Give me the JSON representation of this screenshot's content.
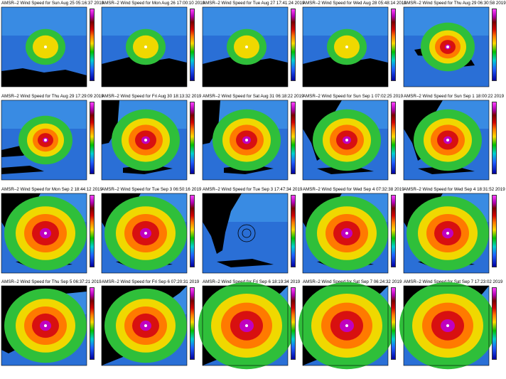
{
  "panels": [
    {
      "title": "AMSR–2 Wind Speed for Sun Aug 25 05:16:37 2019",
      "stage": 1,
      "land": "keys"
    },
    {
      "title": "AMSR–2 Wind Speed for Mon Aug 26 17:00:10 2019",
      "stage": 1,
      "land": "antilles"
    },
    {
      "title": "AMSR–2 Wind Speed for Tue Aug 27 17:41:24 2019",
      "stage": 1,
      "land": "antilles"
    },
    {
      "title": "AMSR–2 Wind Speed for Wed Aug 28 05:48:14 2019",
      "stage": 1,
      "land": "antilles"
    },
    {
      "title": "AMSR–2 Wind Speed for Thu Aug 29 06:30:58 2019",
      "stage": 2,
      "land": "hispaniola"
    },
    {
      "title": "AMSR–2 Wind Speed for Thu Aug 29 17:29:09 2019",
      "stage": 2,
      "land": "cuba"
    },
    {
      "title": "AMSR–2 Wind Speed for Fri Aug 30 18:13:32 2019",
      "stage": 3,
      "land": "bahamas"
    },
    {
      "title": "AMSR–2 Wind Speed for Sat Aug 31 06:18:22 2019",
      "stage": 3,
      "land": "bahamas"
    },
    {
      "title": "AMSR–2 Wind Speed for Sun Sep  1 07:02:25 2019",
      "stage": 3,
      "land": "florida"
    },
    {
      "title": "AMSR–2 Wind Speed for Sun Sep  1 18:00:22 2019",
      "stage": 3,
      "land": "florida"
    },
    {
      "title": "AMSR–2 Wind Speed for Mon Sep  2 18:44:12 2019",
      "stage": 4,
      "land": "florida"
    },
    {
      "title": "AMSR–2 Wind Speed for Tue Sep  3 06:50:16 2019",
      "stage": 4,
      "land": "florida"
    },
    {
      "title": "AMSR–2 Wind Speed for Tue Sep  3 17:47:34 2019",
      "stage": 0,
      "land": "florida"
    },
    {
      "title": "AMSR–2 Wind Speed for Wed Sep  4 07:32:38 2019",
      "stage": 4,
      "land": "florida"
    },
    {
      "title": "AMSR–2 Wind Speed for Wed Sep  4 18:31:52 2019",
      "stage": 4,
      "land": "florida"
    },
    {
      "title": "AMSR–2 Wind Speed for Thu Sep  5 06:37:21 2019",
      "stage": 4,
      "land": "gulf"
    },
    {
      "title": "AMSR–2 Wind Speed for Fri Sep  6 07:20:31 2019",
      "stage": 4,
      "land": "carolina"
    },
    {
      "title": "AMSR–2 Wind Speed for Fri Sep  6 18:19:34 2019",
      "stage": 5,
      "land": "carolina"
    },
    {
      "title": "AMSR–2 Wind Speed for Sat Sep  7 06:24:32 2019",
      "stage": 5,
      "land": "carolina"
    },
    {
      "title": "AMSR–2 Wind Speed for Sat Sep  7 17:23:02 2019",
      "stage": 5,
      "land": "newengland"
    }
  ],
  "colors": {
    "ocean": "#2a6fd6",
    "ocean_light": "#48a8ef",
    "land": "#000000",
    "green": "#2fbf3a",
    "yellow": "#f0d800",
    "orange": "#ff7a00",
    "red": "#d81010",
    "magenta": "#c000c0",
    "white": "#ffffff",
    "gray": "#a0a0a0"
  }
}
